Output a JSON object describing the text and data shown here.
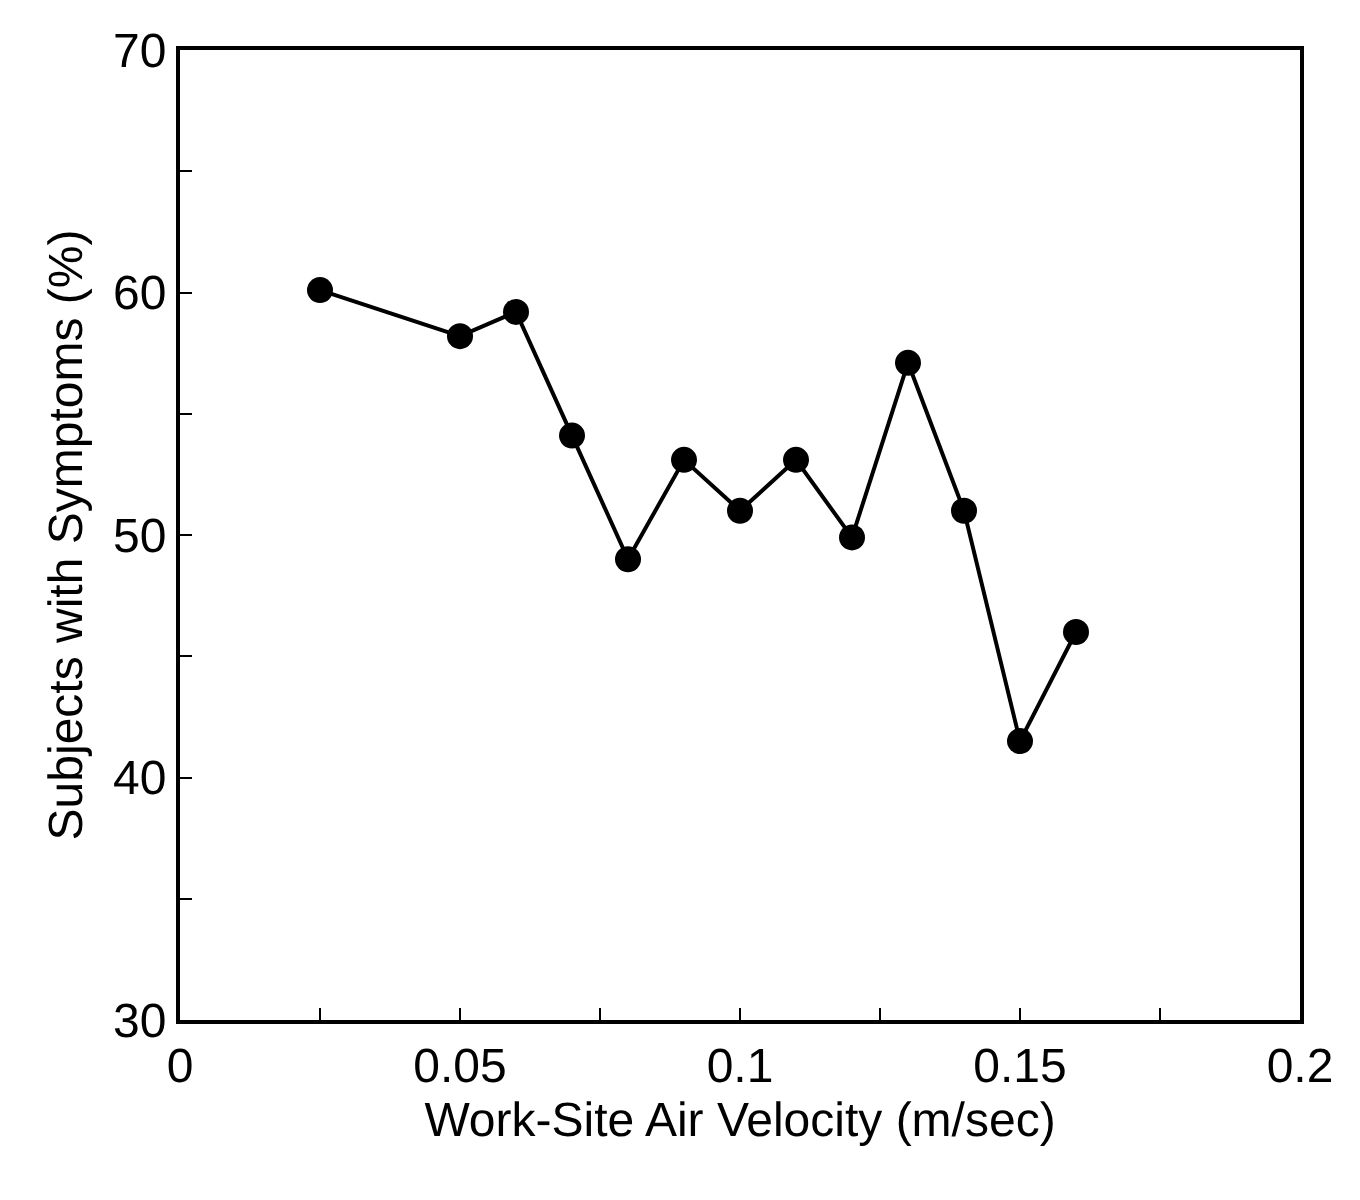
{
  "chart_data": {
    "type": "line",
    "xlabel": "Work-Site Air Velocity (m/sec)",
    "ylabel": "Subjects with Symptoms (%)",
    "x": [
      0.025,
      0.05,
      0.06,
      0.07,
      0.08,
      0.09,
      0.1,
      0.11,
      0.12,
      0.13,
      0.14,
      0.15,
      0.16
    ],
    "series": [
      {
        "color": "#000000",
        "values": [
          60.1,
          58.2,
          59.2,
          54.1,
          49.0,
          53.1,
          51.0,
          53.1,
          49.9,
          57.1,
          51.0,
          41.5,
          46.0
        ]
      }
    ],
    "xlim": [
      0,
      0.2
    ],
    "ylim": [
      30,
      70
    ],
    "xticks": [
      0,
      {
        "value": 0.025,
        "label": null
      },
      0.05,
      {
        "value": 0.075,
        "label": null
      },
      0.1,
      {
        "value": 0.125,
        "label": null
      },
      0.15,
      {
        "value": 0.175,
        "label": null
      },
      0.2
    ],
    "yticks": [
      30,
      {
        "value": 35,
        "label": null
      },
      40,
      {
        "value": 45,
        "label": null
      },
      50,
      {
        "value": 55,
        "label": null
      },
      60,
      {
        "value": 65,
        "label": null
      },
      70
    ],
    "marker": "circle",
    "line_style": "solid"
  }
}
